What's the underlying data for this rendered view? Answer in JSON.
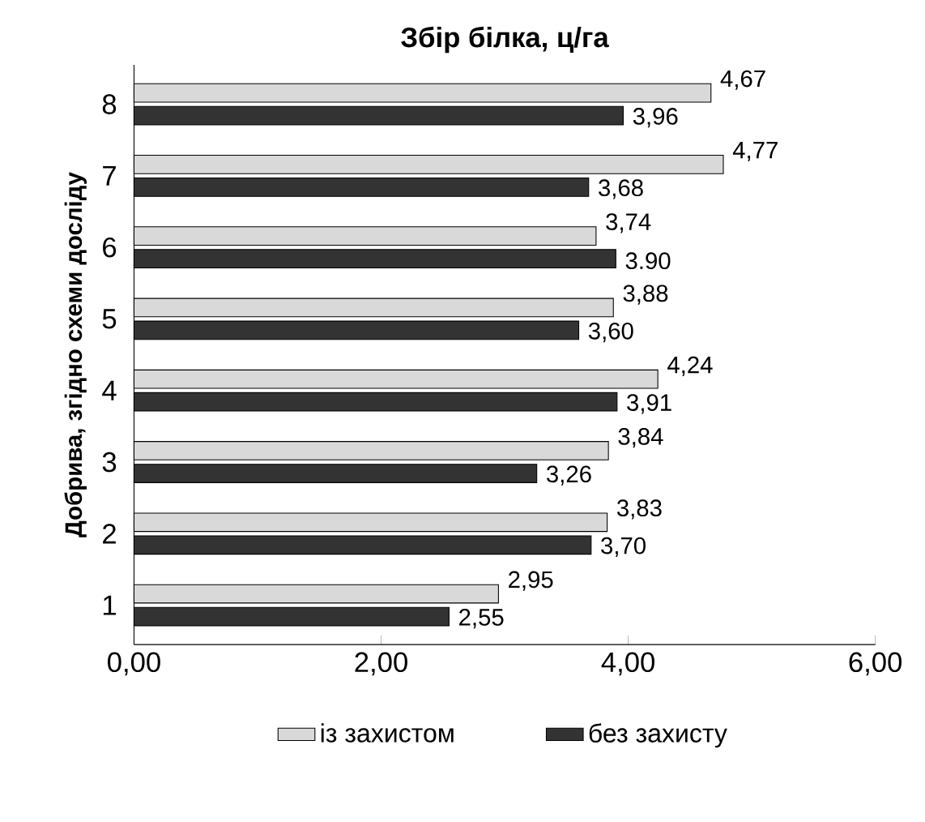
{
  "chart_data": {
    "type": "bar",
    "orientation": "horizontal",
    "title": "Збір білка, ц/га",
    "ylabel": "Добрива, згідно схеми досліду",
    "categories": [
      "8",
      "7",
      "6",
      "5",
      "4",
      "3",
      "2",
      "1"
    ],
    "series": [
      {
        "name": "із захистом",
        "color": "#d9d9d9",
        "values": [
          4.67,
          4.77,
          3.74,
          3.88,
          4.24,
          3.84,
          3.83,
          2.95
        ],
        "value_labels": [
          "4,67",
          "4,77",
          "3,74",
          "3,88",
          "4,24",
          "3,84",
          "3,83",
          "2,95"
        ]
      },
      {
        "name": "без захисту",
        "color": "#333333",
        "values": [
          3.96,
          3.68,
          3.9,
          3.6,
          3.91,
          3.26,
          3.7,
          2.55
        ],
        "value_labels": [
          "3,96",
          "3,68",
          "3.90",
          "3,60",
          "3,91",
          "3,26",
          "3,70",
          "2,55"
        ]
      }
    ],
    "xlim": [
      0,
      6
    ],
    "xticks": [
      {
        "value": 0,
        "label": "0,00"
      },
      {
        "value": 2,
        "label": "2,00"
      },
      {
        "value": 4,
        "label": "4,00"
      },
      {
        "value": 6,
        "label": "6,00"
      }
    ],
    "grid": false,
    "legend": "bottom"
  }
}
